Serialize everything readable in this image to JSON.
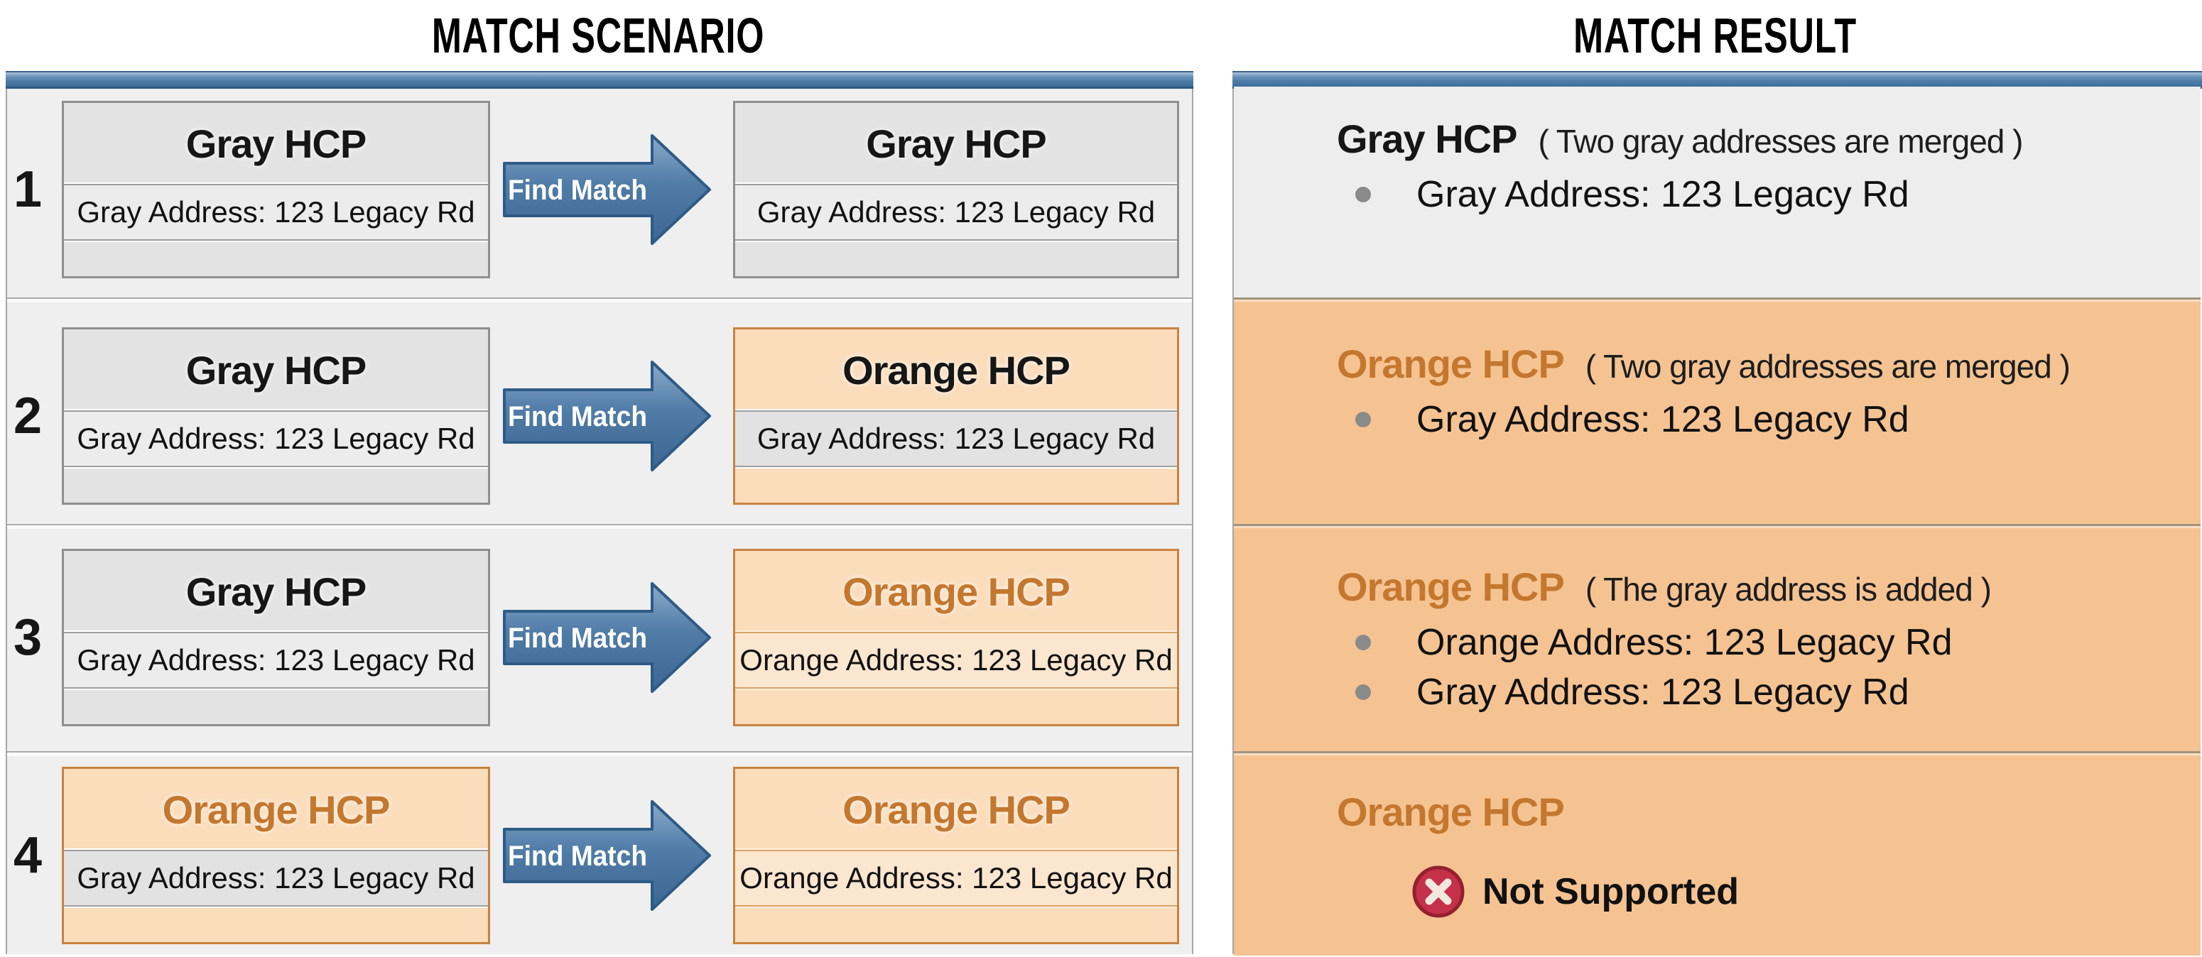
{
  "titles": {
    "scenario": "MATCH SCENARIO",
    "result": "MATCH RESULT"
  },
  "colors": {
    "header_bar_blue": "#4E7CA8",
    "arrow_blue": "#4A7299",
    "orange_text": "#C4772E",
    "scenario_card_orange_bg": "#FBDCBB",
    "result_orange_bg": "#F5C392",
    "gray_card_bg": "#E3E3E3",
    "result_gray_bg": "#EDEDED",
    "error_red": "#C5304A"
  },
  "scenario_rows": [
    {
      "number": "1",
      "arrow_label": "Find Match",
      "left": {
        "variant": "gray",
        "title": "Gray HCP",
        "title_color": "black",
        "address": "Gray Address: 123 Legacy Rd",
        "address_variant": "gray"
      },
      "right": {
        "variant": "gray",
        "title": "Gray HCP",
        "title_color": "black",
        "address": "Gray Address: 123 Legacy Rd",
        "address_variant": "gray"
      }
    },
    {
      "number": "2",
      "arrow_label": "Find Match",
      "left": {
        "variant": "gray",
        "title": "Gray HCP",
        "title_color": "black",
        "address": "Gray Address: 123 Legacy Rd",
        "address_variant": "gray"
      },
      "right": {
        "variant": "orange",
        "title": "Orange HCP",
        "title_color": "black",
        "address": "Gray Address: 123 Legacy Rd",
        "address_variant": "gray"
      }
    },
    {
      "number": "3",
      "arrow_label": "Find Match",
      "left": {
        "variant": "gray",
        "title": "Gray HCP",
        "title_color": "black",
        "address": "Gray Address: 123 Legacy Rd",
        "address_variant": "gray"
      },
      "right": {
        "variant": "orange",
        "title": "Orange HCP",
        "title_color": "orange",
        "address": "Orange Address: 123 Legacy Rd",
        "address_variant": "orange"
      }
    },
    {
      "number": "4",
      "arrow_label": "Find Match",
      "left": {
        "variant": "orange",
        "title": "Orange HCP",
        "title_color": "orange",
        "address": "Gray Address: 123 Legacy Rd",
        "address_variant": "gray"
      },
      "right": {
        "variant": "orange",
        "title": "Orange HCP",
        "title_color": "orange",
        "address": "Orange Address: 123 Legacy Rd",
        "address_variant": "orange"
      }
    }
  ],
  "result_rows": [
    {
      "variant": "gray",
      "title": "Gray HCP",
      "title_color": "black",
      "note": "( Two gray addresses are merged )",
      "bullets": [
        "Gray Address: 123 Legacy Rd"
      ]
    },
    {
      "variant": "orange",
      "title": "Orange HCP",
      "title_color": "orange",
      "note": "( Two gray addresses are merged )",
      "bullets": [
        "Gray Address: 123 Legacy Rd"
      ]
    },
    {
      "variant": "orange",
      "title": "Orange HCP",
      "title_color": "orange",
      "note": "( The gray address is added )",
      "bullets": [
        "Orange Address: 123 Legacy Rd",
        "Gray Address: 123 Legacy Rd"
      ]
    },
    {
      "variant": "orange",
      "title": "Orange HCP",
      "title_color": "orange",
      "note": "",
      "bullets": [],
      "status": {
        "icon": "error-x-icon",
        "label": "Not Supported"
      }
    }
  ]
}
